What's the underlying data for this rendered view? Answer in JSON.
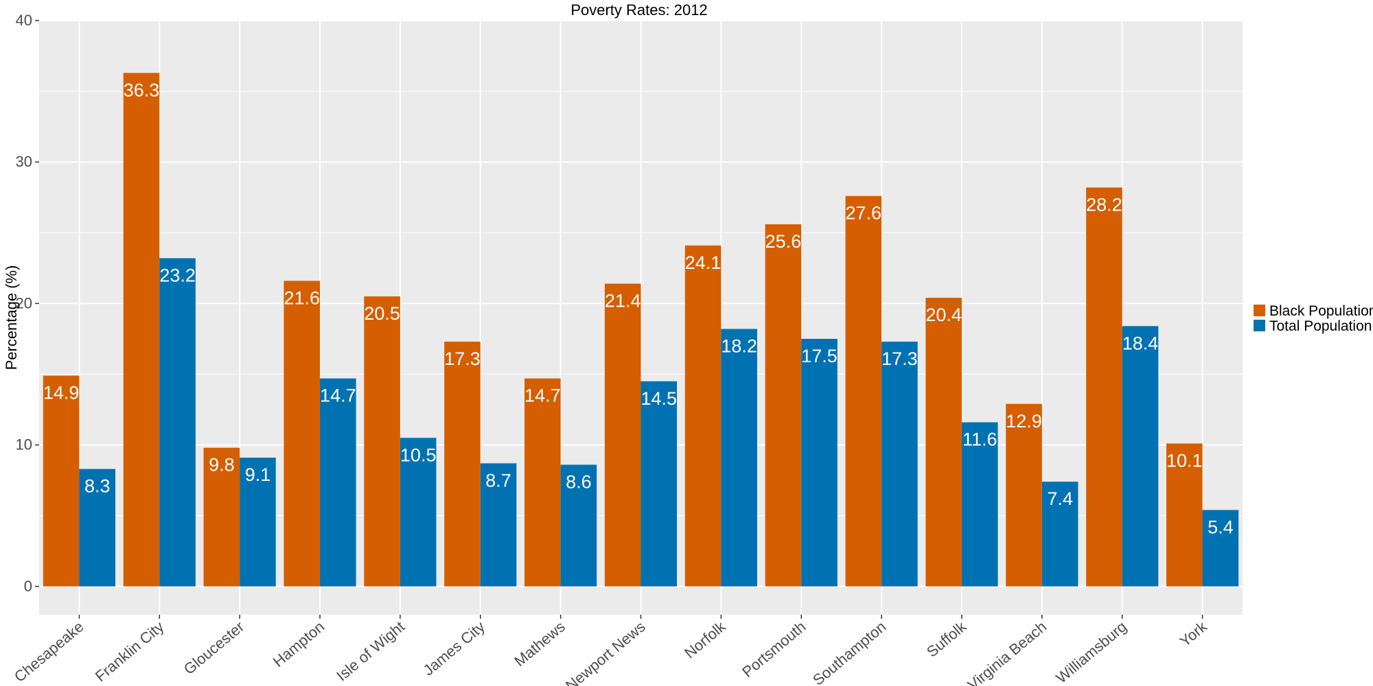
{
  "chart_data": {
    "type": "bar",
    "title": "Poverty Rates: 2012",
    "xlabel": "",
    "ylabel": "Percentage (%)",
    "ylim": [
      -2,
      40
    ],
    "yticks": [
      0,
      10,
      20,
      30,
      40
    ],
    "grid": true,
    "legend_position": "right",
    "categories": [
      "Chesapeake",
      "Franklin City",
      "Gloucester",
      "Hampton",
      "Isle of Wight",
      "James City",
      "Mathews",
      "Newport News",
      "Norfolk",
      "Portsmouth",
      "Southampton",
      "Suffolk",
      "Virginia Beach",
      "Williamsburg",
      "York"
    ],
    "series": [
      {
        "name": "Black Population",
        "color": "#D55E00",
        "values": [
          14.9,
          36.3,
          9.8,
          21.6,
          20.5,
          17.3,
          14.7,
          21.4,
          24.1,
          25.6,
          27.6,
          20.4,
          12.9,
          28.2,
          10.1
        ]
      },
      {
        "name": "Total Population",
        "color": "#0072B2",
        "values": [
          8.3,
          23.2,
          9.1,
          14.7,
          10.5,
          8.7,
          8.6,
          14.5,
          18.2,
          17.5,
          17.3,
          11.6,
          7.4,
          18.4,
          5.4
        ]
      }
    ],
    "panel_background": "#EBEBEB",
    "grid_color": "#FFFFFF"
  }
}
